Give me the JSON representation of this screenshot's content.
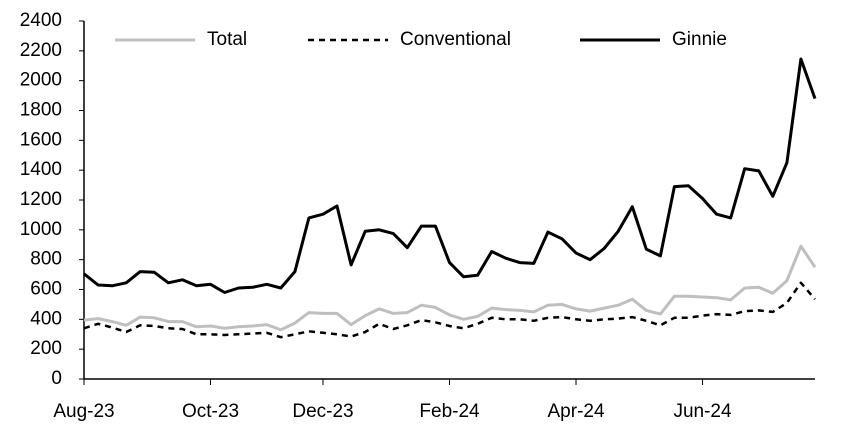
{
  "chart_data": {
    "type": "line",
    "categories": [
      "Aug-23",
      null,
      null,
      null,
      null,
      null,
      null,
      null,
      null,
      "Oct-23",
      null,
      null,
      null,
      null,
      null,
      null,
      null,
      "Dec-23",
      null,
      null,
      null,
      null,
      null,
      null,
      null,
      null,
      "Feb-24",
      null,
      null,
      null,
      null,
      null,
      null,
      null,
      null,
      "Apr-24",
      null,
      null,
      null,
      null,
      null,
      null,
      null,
      null,
      "Jun-24",
      null,
      null,
      null,
      null,
      null,
      null,
      null,
      null
    ],
    "series": [
      {
        "name": "Total",
        "color": "#bfbfbf",
        "style": "solid",
        "values": [
          395,
          405,
          385,
          360,
          415,
          410,
          385,
          385,
          350,
          355,
          340,
          350,
          355,
          365,
          330,
          375,
          445,
          440,
          440,
          365,
          425,
          470,
          440,
          445,
          495,
          480,
          430,
          400,
          420,
          475,
          465,
          460,
          450,
          495,
          500,
          470,
          455,
          475,
          495,
          535,
          460,
          435,
          555,
          555,
          550,
          545,
          530,
          610,
          615,
          575,
          660,
          890,
          750
        ]
      },
      {
        "name": "Conventional",
        "color": "#000000",
        "style": "dashed",
        "values": [
          340,
          370,
          345,
          315,
          360,
          355,
          340,
          335,
          300,
          300,
          295,
          300,
          305,
          310,
          280,
          300,
          320,
          310,
          300,
          285,
          315,
          370,
          335,
          360,
          395,
          380,
          355,
          340,
          370,
          410,
          400,
          400,
          390,
          410,
          415,
          400,
          390,
          400,
          405,
          415,
          390,
          360,
          410,
          410,
          425,
          435,
          430,
          455,
          460,
          450,
          510,
          645,
          535
        ]
      },
      {
        "name": "Ginnie",
        "color": "#000000",
        "style": "solid",
        "values": [
          705,
          630,
          625,
          645,
          720,
          715,
          645,
          665,
          625,
          635,
          580,
          610,
          615,
          635,
          610,
          720,
          1080,
          1105,
          1160,
          765,
          990,
          1000,
          975,
          880,
          1025,
          1025,
          780,
          685,
          695,
          855,
          810,
          780,
          775,
          985,
          940,
          845,
          800,
          875,
          990,
          1155,
          870,
          825,
          1290,
          1295,
          1210,
          1105,
          1080,
          1410,
          1395,
          1225,
          1450,
          2145,
          1880
        ]
      }
    ],
    "ylim": [
      0,
      2400
    ],
    "yticks": [
      0,
      200,
      400,
      600,
      800,
      1000,
      1200,
      1400,
      1600,
      1800,
      2000,
      2200,
      2400
    ],
    "grid": false
  }
}
